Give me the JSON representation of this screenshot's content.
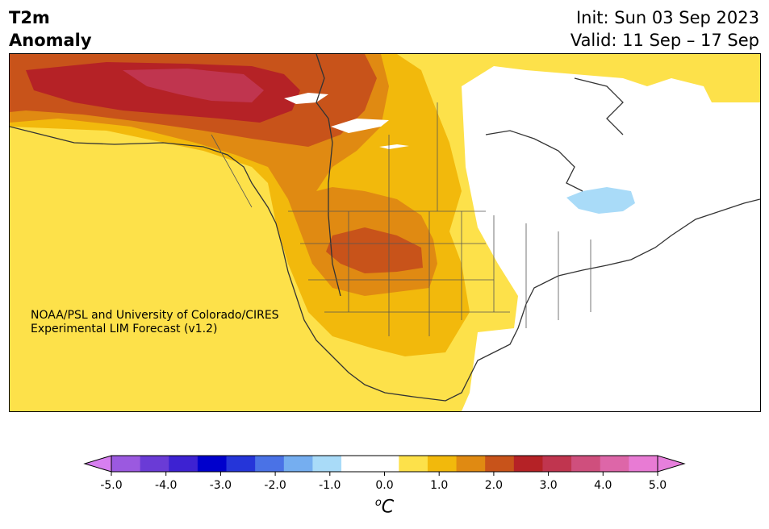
{
  "title": {
    "left_line1": "T2m",
    "left_line2": "Anomaly",
    "init": "Init: Sun 03 Sep 2023",
    "valid": "Valid: 11 Sep – 17 Sep"
  },
  "credit": {
    "line1": "NOAA/PSL and University of Colorado/CIRES",
    "line2": "Experimental LIM Forecast (v1.2)"
  },
  "colorbar": {
    "unit_super": "o",
    "unit": "C",
    "ticks": [
      "-5.0",
      "-4.0",
      "-3.0",
      "-2.0",
      "-1.0",
      "0.0",
      "1.0",
      "2.0",
      "3.0",
      "4.0",
      "5.0"
    ],
    "colors": [
      "#9b59e0",
      "#6a3bd6",
      "#3d22d2",
      "#0000cc",
      "#2535d9",
      "#4a72e6",
      "#75aef0",
      "#a9dbf8",
      "#ffffff",
      "#ffffff",
      "#fde14a",
      "#f2b90c",
      "#e08a12",
      "#c8531a",
      "#b52226",
      "#c0354f",
      "#cf4f7d",
      "#dd66a8",
      "#e87bd4"
    ],
    "under_color": "#d77ff0",
    "over_color": "#e77fdc"
  },
  "map_colors": {
    "light_yellow": "#fde14a",
    "yellow": "#f2b90c",
    "orange": "#e08a12",
    "dark_orange": "#c8531a",
    "red": "#b52226",
    "crimson": "#c0354f",
    "light_blue": "#a9dbf8"
  }
}
